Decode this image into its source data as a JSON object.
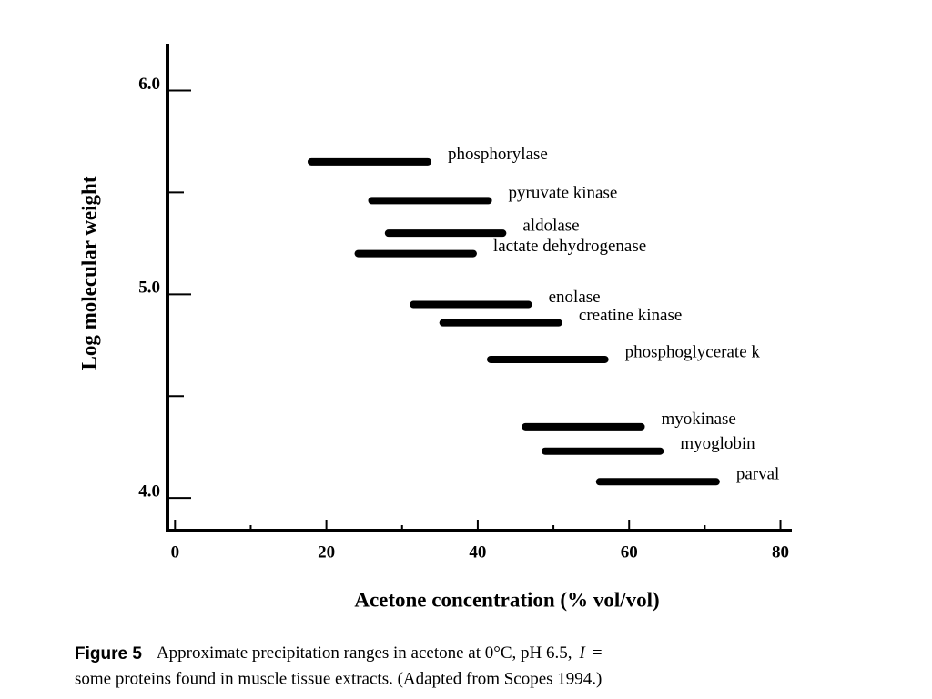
{
  "chart_data": {
    "type": "range",
    "y_label": "Log molecular weight",
    "x_label": "Acetone concentration (% vol/vol)",
    "categories": [
      "phosphorylase",
      "pyruvate kinase",
      "aldolase",
      "lactate dehydrogenase",
      "enolase",
      "creatine kinase",
      "phosphoglycerate k",
      "myokinase",
      "myoglobin",
      "parval"
    ],
    "low": [
      18.0,
      26.0,
      28.2,
      24.2,
      31.5,
      35.4,
      41.7,
      46.3,
      48.9,
      56.1
    ],
    "high": [
      33.4,
      41.4,
      43.3,
      39.4,
      46.7,
      50.7,
      56.8,
      61.6,
      64.1,
      71.5
    ],
    "y": [
      5.65,
      5.46,
      5.3,
      5.2,
      4.95,
      4.86,
      4.68,
      4.35,
      4.23,
      4.08
    ],
    "color": "#000000",
    "xlim": [
      -1,
      81.5
    ],
    "ylim": [
      3.84,
      6.23
    ],
    "xticks": [
      0,
      20,
      40,
      60,
      80
    ],
    "xminor": [
      10,
      30,
      50,
      70
    ],
    "yticks": [
      {
        "value": 4,
        "label": "4.0"
      },
      {
        "value": 5,
        "label": "5.0"
      },
      {
        "value": 6,
        "label": "6.0"
      }
    ],
    "yminor": [
      4.5,
      5.5
    ],
    "caption": {
      "label": "Figure 5",
      "line1": "Approximate precipitation ranges in acetone at 0°C, pH 6.5,",
      "symbol": "I",
      "equals": "=",
      "line2": "some proteins found in muscle tissue extracts. (Adapted from Scopes 1994.)"
    }
  }
}
